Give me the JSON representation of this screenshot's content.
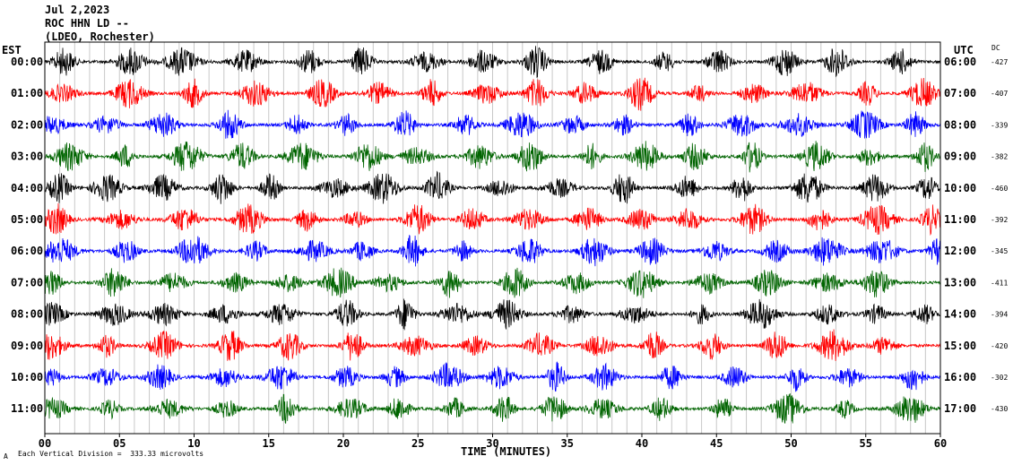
{
  "header": {
    "date": "Jul 2,2023",
    "station": "ROC HHN LD --",
    "network": "(LDEO, Rochester)"
  },
  "left_tz": "EST",
  "right_tz": "UTC",
  "dc_label": "DC",
  "footer": {
    "scale_note": "Each Vertical Division =  333.33 microvolts",
    "mark": "A"
  },
  "chart_data": {
    "type": "line",
    "title": "",
    "xlabel": "TIME (MINUTES)",
    "xlim": [
      0,
      60
    ],
    "x_ticks": [
      "00",
      "05",
      "10",
      "15",
      "20",
      "25",
      "30",
      "35",
      "40",
      "45",
      "50",
      "55",
      "60"
    ],
    "grid": true,
    "trace_colors": [
      "#000000",
      "#ff0000",
      "#0000ff",
      "#006400"
    ],
    "rows": [
      {
        "est": "00:00",
        "utc": "06:00",
        "dc": "-427"
      },
      {
        "est": "01:00",
        "utc": "07:00",
        "dc": "-407"
      },
      {
        "est": "02:00",
        "utc": "08:00",
        "dc": "-339"
      },
      {
        "est": "03:00",
        "utc": "09:00",
        "dc": "-382"
      },
      {
        "est": "04:00",
        "utc": "10:00",
        "dc": "-460"
      },
      {
        "est": "05:00",
        "utc": "11:00",
        "dc": "-392"
      },
      {
        "est": "06:00",
        "utc": "12:00",
        "dc": "-345"
      },
      {
        "est": "07:00",
        "utc": "13:00",
        "dc": "-411"
      },
      {
        "est": "08:00",
        "utc": "14:00",
        "dc": "-394"
      },
      {
        "est": "09:00",
        "utc": "15:00",
        "dc": "-420"
      },
      {
        "est": "10:00",
        "utc": "16:00",
        "dc": "-302"
      },
      {
        "est": "11:00",
        "utc": "17:00",
        "dc": "-430"
      }
    ]
  }
}
